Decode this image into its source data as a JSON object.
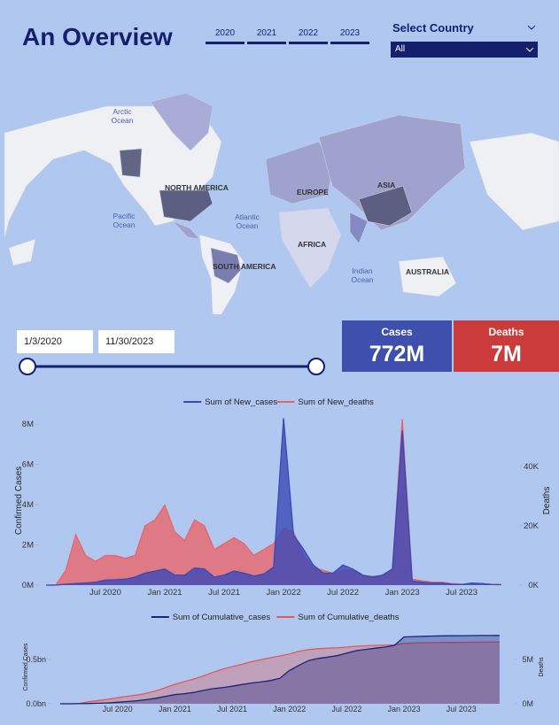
{
  "header": {
    "title": "An Overview",
    "years": [
      "2020",
      "2021",
      "2022",
      "2023"
    ],
    "country_filter": {
      "label": "Select Country",
      "value": "All"
    }
  },
  "map": {
    "labels": [
      "Arctic Ocean",
      "NORTH AMERICA",
      "Pacific Ocean",
      "Atlantic Ocean",
      "EUROPE",
      "ASIA",
      "AFRICA",
      "SOUTH AMERICA",
      "Indian Ocean",
      "AUSTRALIA"
    ]
  },
  "date_range": {
    "start": "1/3/2020",
    "end": "11/30/2023"
  },
  "kpis": [
    {
      "label": "Cases",
      "value": "772M"
    },
    {
      "label": "Deaths",
      "value": "7M"
    }
  ],
  "chart_data": [
    {
      "type": "area",
      "y_label": "Confirmed Cases",
      "y2_label": "Deaths",
      "legend": "top",
      "x": [
        null,
        null,
        null,
        null,
        null,
        null,
        "Jul 2020",
        null,
        null,
        null,
        null,
        null,
        "Jan 2021",
        null,
        null,
        null,
        null,
        null,
        "Jul 2021",
        null,
        null,
        null,
        null,
        null,
        "Jan 2022",
        null,
        null,
        null,
        null,
        null,
        "Jul 2022",
        null,
        null,
        null,
        null,
        null,
        "Jan 2023",
        null,
        null,
        null,
        null,
        null,
        "Jul 2023",
        null,
        null,
        null,
        null
      ],
      "ylim": [
        0,
        8.4
      ],
      "yticks": [
        {
          "value": 0,
          "label": "0M"
        },
        {
          "value": 2,
          "label": "2M"
        },
        {
          "value": 4,
          "label": "4M"
        },
        {
          "value": 6,
          "label": "6M"
        },
        {
          "value": 8,
          "label": "8M"
        }
      ],
      "y2lim": [
        0,
        57
      ],
      "y2ticks": [
        {
          "value": 0,
          "label": "0K"
        },
        {
          "value": 20,
          "label": "20K"
        },
        {
          "value": 40,
          "label": "40K"
        }
      ],
      "series": [
        {
          "name": "Sum of New_cases",
          "color": "#3a49b5",
          "values": [
            0,
            0,
            0.05,
            0.08,
            0.1,
            0.15,
            0.25,
            0.27,
            0.3,
            0.4,
            0.6,
            0.7,
            0.8,
            0.5,
            0.5,
            0.85,
            0.8,
            0.4,
            0.5,
            0.7,
            0.6,
            0.45,
            0.55,
            0.9,
            8.3,
            2.5,
            1.8,
            1.0,
            0.6,
            0.6,
            1.0,
            0.8,
            0.5,
            0.4,
            0.5,
            0.8,
            7.7,
            0.2,
            0.15,
            0.1,
            0.1,
            0.05,
            0.03,
            0.1,
            0.08,
            0.03,
            0.02
          ]
        },
        {
          "name": "Sum of New_deaths",
          "color": "#e8666a",
          "axis": "y2",
          "values": [
            0,
            0.1,
            5,
            17,
            10,
            8,
            10,
            10,
            9,
            10,
            20,
            22,
            27,
            18,
            15,
            22,
            20,
            12,
            14,
            16,
            14,
            10,
            12,
            14,
            19,
            18,
            10,
            6,
            5,
            4,
            5,
            5,
            3,
            3,
            3,
            5,
            56,
            2,
            1.5,
            1,
            1,
            0.5,
            0.3,
            0.5,
            0.5,
            0.3,
            0.2
          ]
        }
      ]
    },
    {
      "type": "area",
      "y_label": "Confirmed Cases",
      "y2_label": "Deaths",
      "legend": "top",
      "x": [
        null,
        null,
        null,
        null,
        null,
        null,
        "Jul 2020",
        null,
        null,
        null,
        null,
        null,
        "Jan 2021",
        null,
        null,
        null,
        null,
        null,
        "Jul 2021",
        null,
        null,
        null,
        null,
        null,
        "Jan 2022",
        null,
        null,
        null,
        null,
        null,
        "Jul 2022",
        null,
        null,
        null,
        null,
        null,
        "Jan 2023",
        null,
        null,
        null,
        null,
        null,
        "Jul 2023",
        null,
        null,
        null,
        null
      ],
      "ylim": [
        0,
        0.83
      ],
      "yticks": [
        {
          "value": 0,
          "label": "0.0bn"
        },
        {
          "value": 0.5,
          "label": "0.5bn"
        }
      ],
      "y2lim": [
        0,
        8.3
      ],
      "y2ticks": [
        {
          "value": 0,
          "label": "0M"
        },
        {
          "value": 5,
          "label": "5M"
        }
      ],
      "series": [
        {
          "name": "Sum of Cumulative_cases",
          "color": "#1a237e",
          "values": [
            0,
            0,
            0.001,
            0.003,
            0.006,
            0.01,
            0.017,
            0.025,
            0.034,
            0.046,
            0.062,
            0.083,
            0.103,
            0.114,
            0.128,
            0.151,
            0.171,
            0.182,
            0.198,
            0.217,
            0.234,
            0.246,
            0.262,
            0.288,
            0.376,
            0.434,
            0.488,
            0.512,
            0.527,
            0.543,
            0.572,
            0.6,
            0.614,
            0.628,
            0.64,
            0.66,
            0.755,
            0.759,
            0.762,
            0.765,
            0.767,
            0.768,
            0.769,
            0.77,
            0.771,
            0.771,
            0.772
          ]
        },
        {
          "name": "Sum of Cumulative_deaths",
          "color": "#e05a5a",
          "axis": "y2",
          "values": [
            0,
            0.003,
            0.04,
            0.23,
            0.37,
            0.51,
            0.68,
            0.85,
            0.99,
            1.17,
            1.45,
            1.81,
            2.2,
            2.5,
            2.8,
            3.15,
            3.55,
            3.9,
            4.2,
            4.45,
            4.75,
            4.98,
            5.2,
            5.4,
            5.62,
            5.93,
            6.12,
            6.22,
            6.28,
            6.32,
            6.4,
            6.5,
            6.55,
            6.6,
            6.62,
            6.66,
            6.82,
            6.86,
            6.88,
            6.9,
            6.92,
            6.93,
            6.94,
            6.95,
            6.96,
            6.97,
            6.98
          ]
        }
      ]
    }
  ]
}
